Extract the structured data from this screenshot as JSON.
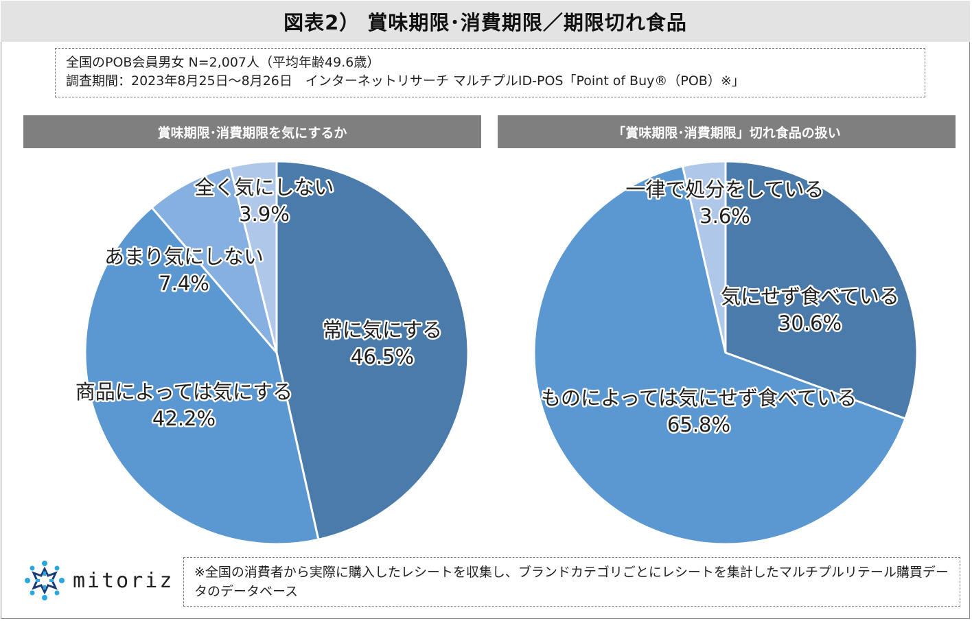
{
  "title": "図表2） 賞味期限･消費期限／期限切れ食品",
  "info": {
    "line1": "全国のPOB会員男女 N=2,007人（平均年齢49.6歳）",
    "line2": "調査期間：2023年8月25日～8月26日　インターネットリサーチ マルチプルID-POS「Point of Buy®（POB）※」"
  },
  "colors": {
    "dark_blue": "#4a7bab",
    "mid_blue": "#5b97d1",
    "light_blue": "#86b0e0",
    "pale_blue": "#afc8e9",
    "header_gray": "#7f7f7f"
  },
  "chart_data": [
    {
      "type": "pie",
      "title": "賞味期限･消費期限を気にするか",
      "slices": [
        {
          "label": "常に気にする",
          "value": 46.5,
          "display": "46.5%",
          "color": "#4a7bab"
        },
        {
          "label": "商品によっては気にする",
          "value": 42.2,
          "display": "42.2%",
          "color": "#5b97d1"
        },
        {
          "label": "あまり気にしない",
          "value": 7.4,
          "display": "7.4%",
          "color": "#86b0e0"
        },
        {
          "label": "全く気にしない",
          "value": 3.9,
          "display": "3.9%",
          "color": "#afc8e9"
        }
      ]
    },
    {
      "type": "pie",
      "title": "「賞味期限･消費期限」切れ食品の扱い",
      "slices": [
        {
          "label": "気にせず食べている",
          "value": 30.6,
          "display": "30.6%",
          "color": "#4a7bab"
        },
        {
          "label": "ものによっては気にせず食べている",
          "value": 65.8,
          "display": "65.8%",
          "color": "#5b97d1"
        },
        {
          "label": "一律で処分をしている",
          "value": 3.6,
          "display": "3.6%",
          "color": "#afc8e9"
        }
      ]
    }
  ],
  "logo": {
    "text": "mitoriz",
    "icon": "mitoriz-star-icon"
  },
  "footnote": "※全国の消費者から実際に購入したレシートを収集し、ブランドカテゴリごとにレシートを集計したマルチプルリテール購買データのデータベース"
}
